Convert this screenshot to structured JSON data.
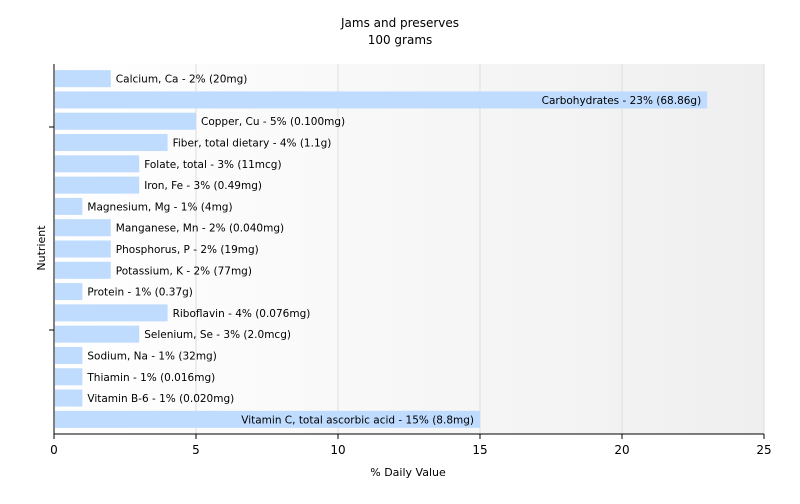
{
  "chart_data": {
    "type": "bar",
    "orientation": "horizontal",
    "title": "Jams and preserves",
    "subtitle": "100 grams",
    "xlabel": "% Daily Value",
    "ylabel": "Nutrient",
    "xlim": [
      0,
      25
    ],
    "xticks": [
      0,
      5,
      10,
      15,
      20,
      25
    ],
    "grid": true,
    "colors": {
      "bar": "#bfdcff",
      "plot_bg": "#f7f7f7",
      "grid": "#ffffff",
      "axis": "#000000"
    },
    "categories": [
      "Calcium, Ca",
      "Carbohydrates",
      "Copper, Cu",
      "Fiber, total dietary",
      "Folate, total",
      "Iron, Fe",
      "Magnesium, Mg",
      "Manganese, Mn",
      "Phosphorus, P",
      "Potassium, K",
      "Protein",
      "Riboflavin",
      "Selenium, Se",
      "Sodium, Na",
      "Thiamin",
      "Vitamin B-6",
      "Vitamin C, total ascorbic acid"
    ],
    "values": [
      2,
      23,
      5,
      4,
      3,
      3,
      1,
      2,
      2,
      2,
      1,
      4,
      3,
      1,
      1,
      1,
      15
    ],
    "data_labels": [
      "Calcium, Ca - 2% (20mg)",
      "Carbohydrates - 23% (68.86g)",
      "Copper, Cu - 5% (0.100mg)",
      "Fiber, total dietary - 4% (1.1g)",
      "Folate, total - 3% (11mcg)",
      "Iron, Fe - 3% (0.49mg)",
      "Magnesium, Mg - 1% (4mg)",
      "Manganese, Mn - 2% (0.040mg)",
      "Phosphorus, P - 2% (19mg)",
      "Potassium, K - 2% (77mg)",
      "Protein - 1% (0.37g)",
      "Riboflavin - 4% (0.076mg)",
      "Selenium, Se - 3% (2.0mcg)",
      "Sodium, Na - 1% (32mg)",
      "Thiamin - 1% (0.016mg)",
      "Vitamin B-6 - 1% (0.020mg)",
      "Vitamin C, total ascorbic acid - 15% (8.8mg)"
    ]
  }
}
